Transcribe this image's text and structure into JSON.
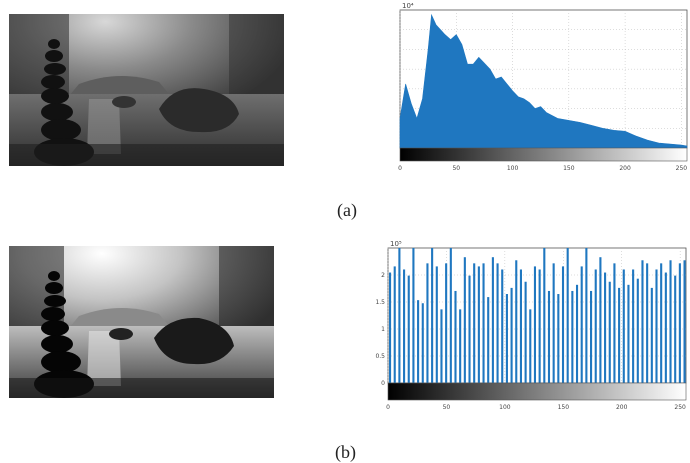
{
  "figure": {
    "captions": [
      "(a)",
      "(b)"
    ]
  },
  "chart_data": [
    {
      "type": "area",
      "title": "",
      "xlabel": "",
      "ylabel": "",
      "scale_exponent_label": "10⁴",
      "x_tick_labels": [
        "0",
        "50",
        "100",
        "150",
        "200",
        "250"
      ],
      "y_tick_labels": [
        "",
        "",
        "",
        "",
        "",
        "",
        ""
      ],
      "xlim": [
        0,
        255
      ],
      "ylim": [
        0,
        14
      ],
      "x": [
        0,
        5,
        10,
        15,
        20,
        25,
        28,
        32,
        36,
        40,
        45,
        50,
        55,
        60,
        65,
        70,
        75,
        80,
        85,
        90,
        95,
        100,
        105,
        110,
        115,
        120,
        125,
        130,
        140,
        150,
        160,
        170,
        180,
        190,
        200,
        210,
        220,
        230,
        240,
        250,
        255
      ],
      "values": [
        3,
        6.5,
        4.5,
        3,
        5,
        10,
        13.5,
        12.5,
        12,
        11.5,
        11,
        11.5,
        10.5,
        8.5,
        8.5,
        9.2,
        8.6,
        8,
        7,
        7.2,
        6.5,
        5.8,
        5.2,
        5,
        4.6,
        4,
        4.2,
        3.6,
        3,
        2.8,
        2.6,
        2.3,
        2,
        1.8,
        1.7,
        1.2,
        0.8,
        0.5,
        0.4,
        0.3,
        0.2
      ],
      "colors": {
        "fill": "#1f77c0",
        "gradient_start": "#000000",
        "gradient_end": "#ffffff"
      }
    },
    {
      "type": "bar",
      "title": "",
      "xlabel": "",
      "ylabel": "",
      "scale_exponent_label": "10⁵",
      "x_tick_labels": [
        "0",
        "50",
        "100",
        "150",
        "200",
        "250"
      ],
      "y_tick_labels": [
        "0",
        "0.5",
        "1",
        "1.5",
        "2"
      ],
      "xlim": [
        0,
        255
      ],
      "ylim": [
        0,
        2.2
      ],
      "x": [
        0,
        4,
        8,
        12,
        16,
        20,
        24,
        28,
        32,
        36,
        40,
        44,
        48,
        52,
        56,
        60,
        64,
        68,
        72,
        76,
        80,
        84,
        88,
        92,
        96,
        100,
        104,
        108,
        112,
        116,
        120,
        124,
        128,
        132,
        136,
        140,
        144,
        148,
        152,
        156,
        160,
        164,
        168,
        172,
        176,
        180,
        184,
        188,
        192,
        196,
        200,
        204,
        208,
        212,
        216,
        220,
        224,
        228,
        232,
        236,
        240,
        244,
        248,
        252
      ],
      "values": [
        1.8,
        1.9,
        2.2,
        1.85,
        1.75,
        2.2,
        1.35,
        1.3,
        1.95,
        2.2,
        1.9,
        1.2,
        1.95,
        2.2,
        1.5,
        1.2,
        2.05,
        1.75,
        1.95,
        1.9,
        1.95,
        1.4,
        2.05,
        1.95,
        1.85,
        1.45,
        1.55,
        2.0,
        1.85,
        1.65,
        1.2,
        1.9,
        1.85,
        2.2,
        1.5,
        1.95,
        1.45,
        1.9,
        2.2,
        1.5,
        1.6,
        1.9,
        2.2,
        1.5,
        1.85,
        2.05,
        1.8,
        1.65,
        1.95,
        1.55,
        1.85,
        1.6,
        1.85,
        1.7,
        2.0,
        1.95,
        1.55,
        1.85,
        1.95,
        1.8,
        2.0,
        1.75,
        1.95,
        2.0
      ],
      "colors": {
        "fill": "#1f77c0",
        "gradient_start": "#000000",
        "gradient_end": "#ffffff"
      }
    }
  ]
}
